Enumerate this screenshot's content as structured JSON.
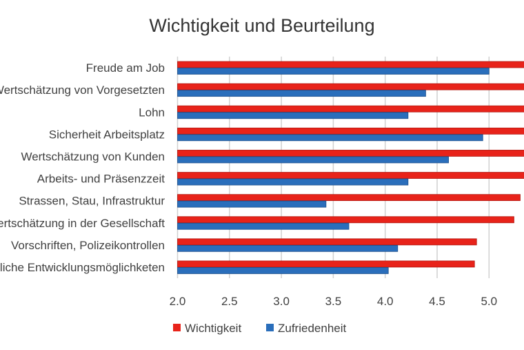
{
  "chart_data": {
    "type": "bar",
    "orientation": "horizontal",
    "title": "Wichtigkeit und Beurteilung",
    "xlabel": "",
    "ylabel": "",
    "xlim": [
      2.0,
      5.5
    ],
    "xticks": [
      "2.0",
      "2.5",
      "3.0",
      "3.5",
      "4.0",
      "4.5",
      "5.0"
    ],
    "grid": true,
    "legend_position": "bottom",
    "categories": [
      "Freude am Job",
      "Wertschätzung von Vorgesetzten",
      "Lohn",
      "Sicherheit Arbeitsplatz",
      "Wertschätzung von Kunden",
      "Arbeits- und Präsenzzeit",
      "Strassen, Stau, Infrastruktur",
      "Wertschätzung in der Gesellschaft",
      "Vorschriften, Polizeikontrollen",
      "Berufliche Entwicklungsmöglichketen"
    ],
    "series": [
      {
        "name": "Wichtigkeit",
        "color": "#e8231a",
        "values": [
          5.5,
          5.5,
          5.5,
          5.5,
          5.5,
          5.5,
          5.3,
          5.24,
          4.88,
          4.86
        ]
      },
      {
        "name": "Zufriedenheit",
        "color": "#2a6ebb",
        "values": [
          5.0,
          4.39,
          4.22,
          4.94,
          4.61,
          4.22,
          3.43,
          3.65,
          4.12,
          4.03
        ]
      }
    ]
  }
}
